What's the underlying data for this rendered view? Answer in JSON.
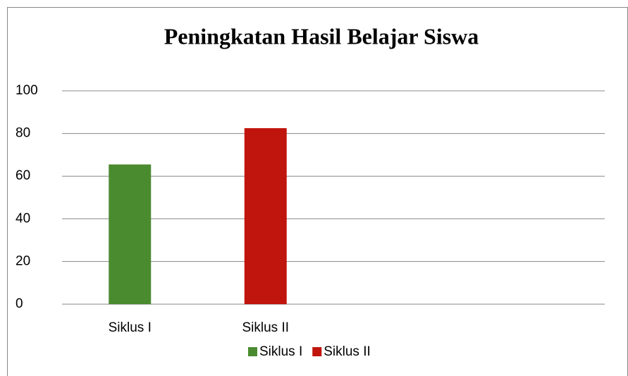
{
  "chart_data": {
    "type": "bar",
    "title": "Peningkatan Hasil Belajar Siswa",
    "categories": [
      "Siklus I",
      "Siklus II",
      null,
      null
    ],
    "values": [
      65.5,
      82.5,
      null,
      null
    ],
    "colors": [
      "#4b8b30",
      "#c0150c"
    ],
    "ylim": [
      0,
      100
    ],
    "yticks": [
      0,
      20,
      40,
      60,
      80,
      100
    ],
    "grid": true,
    "legend": "bottom"
  }
}
